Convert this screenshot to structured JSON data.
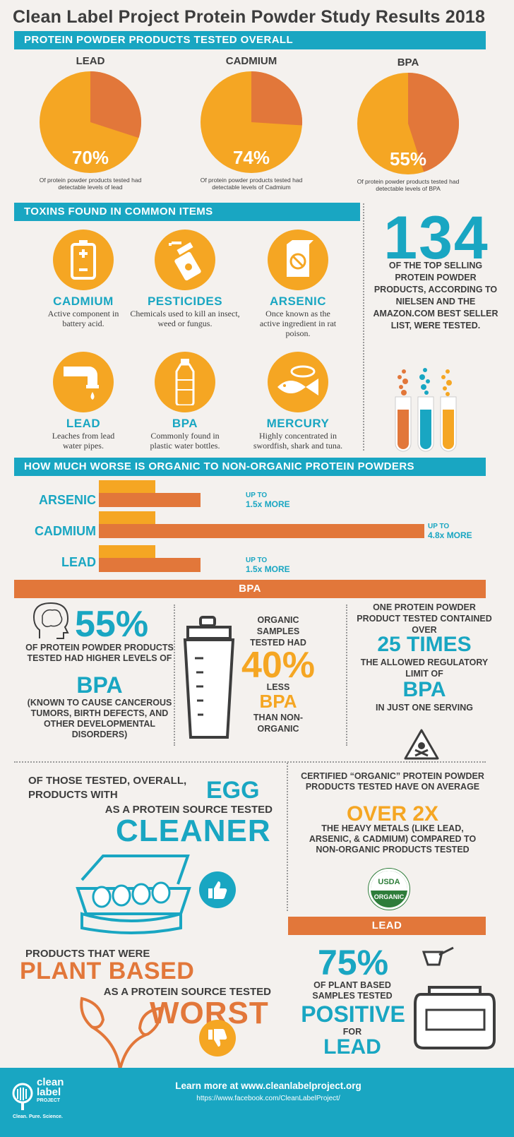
{
  "title": "Clean Label Project Protein Powder Study Results 2018",
  "sections": {
    "overall": "PROTEIN POWDER PRODUCTS TESTED OVERALL",
    "toxins": "TOXINS FOUND IN COMMON ITEMS",
    "worse": "HOW MUCH WORSE IS ORGANIC TO NON-ORGANIC PROTEIN POWDERS",
    "bpa": "BPA",
    "lead": "LEAD"
  },
  "pies": [
    {
      "label": "LEAD",
      "value": 70,
      "pct": "70%",
      "caption": "Of protein powder products tested had detectable levels of lead"
    },
    {
      "label": "CADMIUM",
      "value": 74,
      "pct": "74%",
      "caption": "Of protein powder products tested had detectable levels of Cadmium"
    },
    {
      "label": "BPA",
      "value": 55,
      "pct": "55%",
      "caption": "Of protein powder products tested had detectable levels of BPA"
    }
  ],
  "toxins": [
    {
      "name": "CADMIUM",
      "desc": "Active component in battery acid.",
      "icon": "battery-icon"
    },
    {
      "name": "PESTICIDES",
      "desc": "Chemicals used to kill an insect, weed or fungus.",
      "icon": "spray-can-icon"
    },
    {
      "name": "ARSENIC",
      "desc": "Once known as the active ingredient in rat poison.",
      "icon": "poison-box-icon"
    },
    {
      "name": "LEAD",
      "desc": "Leaches from lead water pipes.",
      "icon": "pipe-icon"
    },
    {
      "name": "BPA",
      "desc": "Commonly found in plastic water bottles.",
      "icon": "bottle-icon"
    },
    {
      "name": "MERCURY",
      "desc": "Highly concentrated in swordfish, shark and tuna.",
      "icon": "fish-can-icon"
    }
  ],
  "count": {
    "number": "134",
    "text": "OF THE TOP SELLING PROTEIN POWDER PRODUCTS, ACCORDING TO NIELSEN AND THE AMAZON.COM BEST SELLER LIST, WERE TESTED."
  },
  "comparison": [
    {
      "label": "ARSENIC",
      "upto": "UP TO",
      "times": "1.5x MORE",
      "ratio": 1.5
    },
    {
      "label": "CADMIUM",
      "upto": "UP TO",
      "times": "4.8x MORE",
      "ratio": 4.8
    },
    {
      "label": "LEAD",
      "upto": "UP TO",
      "times": "1.5x MORE",
      "ratio": 1.5
    }
  ],
  "bpa": {
    "col1": {
      "pct": "55%",
      "text1": "OF PROTEIN POWDER PRODUCTS TESTED HAD HIGHER LEVELS OF",
      "big": "BPA",
      "text2": "(KNOWN TO CAUSE CANCEROUS TUMORS, BIRTH DEFECTS, AND OTHER DEVELOPMENTAL DISORDERS)"
    },
    "col2": {
      "text1": "ORGANIC SAMPLES TESTED HAD",
      "pct": "40%",
      "less": "LESS",
      "big": "BPA",
      "text2": "THAN NON-ORGANIC"
    },
    "col3": {
      "text1": "ONE PROTEIN POWDER PRODUCT TESTED CONTAINED OVER",
      "big1": "25 TIMES",
      "text2": "THE ALLOWED REGULATORY LIMIT OF",
      "big2": "BPA",
      "text3": "IN JUST ONE SERVING"
    }
  },
  "egg": {
    "text1": "OF THOSE TESTED, OVERALL, PRODUCTS WITH",
    "egg": "EGG",
    "text2": "AS A PROTEIN SOURCE TESTED",
    "big": "CLEANER"
  },
  "plant": {
    "text1": "PRODUCTS THAT WERE",
    "big1": "PLANT BASED",
    "text2": "AS A PROTEIN SOURCE TESTED",
    "big2": "WORST"
  },
  "organic": {
    "text1": "CERTIFIED “ORGANIC” PROTEIN POWDER PRODUCTS TESTED HAVE ON AVERAGE",
    "big": "OVER 2X",
    "text2": "THE HEAVY METALS (LIKE LEAD, ARSENIC, & CADMIUM) COMPARED TO NON-ORGANIC PRODUCTS TESTED",
    "seal_top": "USDA",
    "seal_bottom": "ORGANIC"
  },
  "lead": {
    "pct": "75%",
    "text1": "OF PLANT BASED SAMPLES TESTED",
    "big": "POSITIVE",
    "for": "FOR",
    "big2": "LEAD"
  },
  "footer": {
    "logo1": "clean",
    "logo2": "label",
    "logo3": "PROJECT",
    "tagline": "Clean. Pure. Science.",
    "learn": "Learn more at www.cleanlabelproject.org",
    "fb": "https://www.facebook.com/CleanLabelProject/"
  },
  "colors": {
    "teal": "#19a6c2",
    "orange": "#f5a623",
    "dark_orange": "#e2773a",
    "text": "#3d3d3d"
  }
}
